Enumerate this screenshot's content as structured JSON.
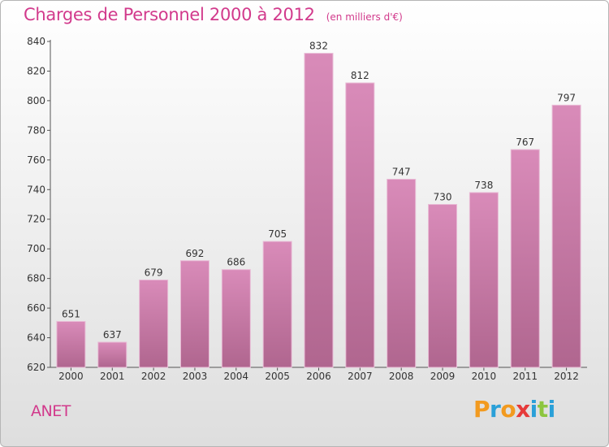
{
  "chart_data": {
    "type": "bar",
    "title": "Charges de Personnel 2000 à 2012",
    "subtitle": "(en milliers d'€)",
    "categories": [
      "2000",
      "2001",
      "2002",
      "2003",
      "2004",
      "2005",
      "2006",
      "2007",
      "2008",
      "2009",
      "2010",
      "2011",
      "2012"
    ],
    "values": [
      651,
      637,
      679,
      692,
      686,
      705,
      832,
      812,
      747,
      730,
      738,
      767,
      797
    ],
    "xlabel": "",
    "ylabel": "",
    "ylim": [
      620,
      840
    ],
    "yticks": [
      620,
      640,
      660,
      680,
      700,
      720,
      740,
      760,
      780,
      800,
      820,
      840
    ],
    "grid": false,
    "bar_color": "#d98bb9",
    "bar_color_dark": "#b0668f"
  },
  "commune": "ANET",
  "logo": {
    "letters": [
      "P",
      "r",
      "o",
      "x",
      "i",
      "t",
      "i"
    ],
    "colors": [
      "#f29a1f",
      "#2aa0d8",
      "#f29a1f",
      "#e63a3a",
      "#2aa0d8",
      "#8dc63f",
      "#2aa0d8"
    ]
  },
  "colors": {
    "title": "#d23a8c"
  }
}
